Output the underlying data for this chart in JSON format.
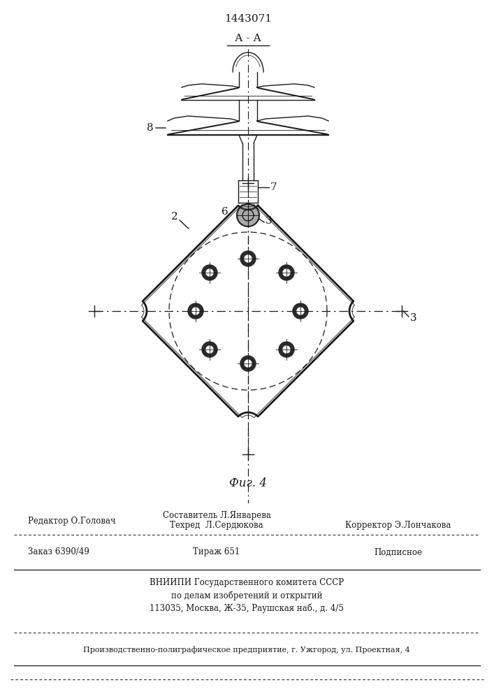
{
  "title": "1443071",
  "section_label": "А - А",
  "fig_label": "Фиг. 4",
  "bg_color": "#ffffff",
  "line_color": "#1a1a1a",
  "label_8": "8",
  "label_7": "7",
  "label_6": "6",
  "label_3_top": "3",
  "label_2": "2",
  "label_3_right": "3",
  "footer": {
    "editor": "Редактор О.Головач",
    "compiler": "Составитель Л.Январева",
    "techred": "Техред  Л.Сердюкова",
    "corrector": "Корректор Э.Лончакова",
    "order": "Заказ 6390/49",
    "tirazh": "Тираж 651",
    "podpisnoe": "Подписное",
    "vniipи": "ВНИИПИ Государственного комитета СССР",
    "po_delam": "по делам изобретений и открытий",
    "address": "113035, Москва, Ж-35, Раушская наб., д. 4/5",
    "factory": "Производственно-полиграфическое предприятие, г. Ужгород, ул. Проектная, 4"
  }
}
